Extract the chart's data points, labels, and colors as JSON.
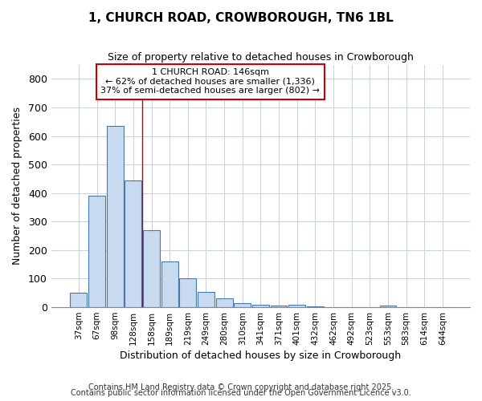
{
  "title1": "1, CHURCH ROAD, CROWBOROUGH, TN6 1BL",
  "title2": "Size of property relative to detached houses in Crowborough",
  "xlabel": "Distribution of detached houses by size in Crowborough",
  "ylabel": "Number of detached properties",
  "bar_labels": [
    "37sqm",
    "67sqm",
    "98sqm",
    "128sqm",
    "158sqm",
    "189sqm",
    "219sqm",
    "249sqm",
    "280sqm",
    "310sqm",
    "341sqm",
    "371sqm",
    "401sqm",
    "432sqm",
    "462sqm",
    "492sqm",
    "523sqm",
    "553sqm",
    "583sqm",
    "614sqm",
    "644sqm"
  ],
  "bar_values": [
    50,
    390,
    635,
    445,
    270,
    160,
    100,
    53,
    30,
    15,
    8,
    5,
    10,
    4,
    0,
    0,
    0,
    5,
    0,
    0,
    0
  ],
  "bar_color": "#c8daf0",
  "bar_edgecolor": "#4878a8",
  "grid_color": "#c8d0e0",
  "background_color": "#ffffff",
  "fig_background_color": "#ffffff",
  "annotation_text": "1 CHURCH ROAD: 146sqm\n← 62% of detached houses are smaller (1,336)\n37% of semi-detached houses are larger (802) →",
  "annotation_box_color": "#ffffff",
  "annotation_box_edgecolor": "#cc0000",
  "vline_color": "#cc0000",
  "vline_x_index": 3.5,
  "ylim": [
    0,
    850
  ],
  "yticks": [
    0,
    100,
    200,
    300,
    400,
    500,
    600,
    700,
    800
  ],
  "footer1": "Contains HM Land Registry data © Crown copyright and database right 2025.",
  "footer2": "Contains public sector information licensed under the Open Government Licence v3.0."
}
